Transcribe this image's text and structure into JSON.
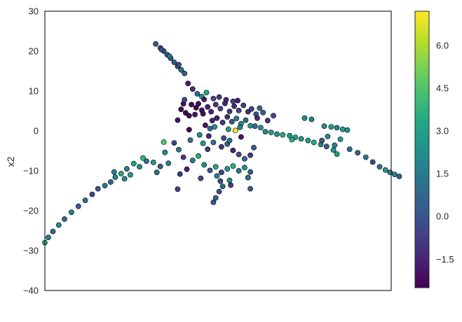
{
  "chart_data": {
    "type": "scatter",
    "title": "",
    "xlabel": "",
    "ylabel": "x2",
    "ylim": [
      -40,
      30
    ],
    "yticks": [
      30,
      20,
      10,
      0,
      -10,
      -20,
      -30,
      -40
    ],
    "xlim": [
      -15,
      15
    ],
    "xticks_shown": false,
    "grid": false,
    "legend": "none",
    "colormap": "viridis",
    "colorbar": {
      "range": [
        -2.5,
        7.2
      ],
      "ticks": [
        6.0,
        4.5,
        3.0,
        1.5,
        0.0,
        -1.5
      ],
      "tick_labels": [
        "6.0",
        "4.5",
        "3.0",
        "1.5",
        "0.0",
        "−1.5"
      ]
    },
    "marker_edge_color": "#000000",
    "points": [
      {
        "x": -5.4,
        "y": 21.8,
        "c": 0.2
      },
      {
        "x": -5.0,
        "y": 20.8,
        "c": 0.5
      },
      {
        "x": -4.7,
        "y": 20.0,
        "c": 0.0
      },
      {
        "x": -4.4,
        "y": 19.1,
        "c": 0.4
      },
      {
        "x": -4.1,
        "y": 18.2,
        "c": 0.6
      },
      {
        "x": -3.8,
        "y": 17.2,
        "c": 0.1
      },
      {
        "x": -3.5,
        "y": 16.2,
        "c": 0.5
      },
      {
        "x": -3.2,
        "y": 15.3,
        "c": 1.0
      },
      {
        "x": -2.9,
        "y": 14.4,
        "c": 0.3
      },
      {
        "x": -4.9,
        "y": 20.4,
        "c": -0.3
      },
      {
        "x": -4.2,
        "y": 18.7,
        "c": 1.2
      },
      {
        "x": -3.4,
        "y": 16.6,
        "c": -0.2
      },
      {
        "x": -2.6,
        "y": 11.9,
        "c": -1.8
      },
      {
        "x": -2.2,
        "y": 10.5,
        "c": -1.2
      },
      {
        "x": -1.8,
        "y": 9.3,
        "c": 0.8
      },
      {
        "x": -1.4,
        "y": 8.6,
        "c": 2.6
      },
      {
        "x": -1.0,
        "y": 9.6,
        "c": 3.2
      },
      {
        "x": -2.3,
        "y": 6.6,
        "c": -2.3
      },
      {
        "x": -1.9,
        "y": 5.8,
        "c": -2.4
      },
      {
        "x": -1.4,
        "y": 5.2,
        "c": -2.0
      },
      {
        "x": -3.2,
        "y": 5.4,
        "c": -2.3
      },
      {
        "x": -2.8,
        "y": 4.5,
        "c": -2.4
      },
      {
        "x": -2.5,
        "y": 3.8,
        "c": -2.2
      },
      {
        "x": -3.0,
        "y": 6.8,
        "c": -2.1
      },
      {
        "x": -2.0,
        "y": 4.1,
        "c": -1.9
      },
      {
        "x": -1.7,
        "y": 6.8,
        "c": -2.1
      },
      {
        "x": -1.3,
        "y": 4.3,
        "c": -2.2
      },
      {
        "x": -0.9,
        "y": 6.0,
        "c": -1.7
      },
      {
        "x": -0.6,
        "y": 4.8,
        "c": -1.5
      },
      {
        "x": -0.2,
        "y": 6.6,
        "c": -1.0
      },
      {
        "x": 0.2,
        "y": 5.6,
        "c": -0.6
      },
      {
        "x": 0.6,
        "y": 6.9,
        "c": -1.3
      },
      {
        "x": 1.0,
        "y": 4.9,
        "c": -0.8
      },
      {
        "x": 1.4,
        "y": 6.2,
        "c": -1.1
      },
      {
        "x": 1.8,
        "y": 5.1,
        "c": -0.4
      },
      {
        "x": 2.2,
        "y": 6.4,
        "c": -0.9
      },
      {
        "x": 2.6,
        "y": 4.8,
        "c": -1.2
      },
      {
        "x": 2.9,
        "y": 5.5,
        "c": -0.6
      },
      {
        "x": 3.3,
        "y": 4.2,
        "c": -0.1
      },
      {
        "x": -0.5,
        "y": 2.6,
        "c": -1.4
      },
      {
        "x": -0.1,
        "y": 3.2,
        "c": -1.6
      },
      {
        "x": 0.4,
        "y": 2.1,
        "c": -0.9
      },
      {
        "x": 0.8,
        "y": 3.5,
        "c": -1.2
      },
      {
        "x": 1.2,
        "y": 2.3,
        "c": 0.2
      },
      {
        "x": 1.6,
        "y": 3.1,
        "c": 1.4
      },
      {
        "x": 2.0,
        "y": 1.8,
        "c": 2.1
      },
      {
        "x": 2.4,
        "y": 2.7,
        "c": 0.7
      },
      {
        "x": 2.8,
        "y": 1.3,
        "c": 2.8
      },
      {
        "x": -1.1,
        "y": 1.4,
        "c": -2.0
      },
      {
        "x": -0.7,
        "y": 0.6,
        "c": 0.9
      },
      {
        "x": -0.3,
        "y": 1.0,
        "c": 2.4
      },
      {
        "x": 0.9,
        "y": 0.4,
        "c": 2.9
      },
      {
        "x": 1.5,
        "y": 0.1,
        "c": 7.0
      },
      {
        "x": 1.9,
        "y": 0.9,
        "c": 1.7
      },
      {
        "x": 0.1,
        "y": 8.5,
        "c": -1.0
      },
      {
        "x": 0.7,
        "y": 7.8,
        "c": -1.4
      },
      {
        "x": 1.3,
        "y": 7.4,
        "c": -0.7
      },
      {
        "x": 1.7,
        "y": 7.6,
        "c": -1.6
      },
      {
        "x": -1.2,
        "y": 7.9,
        "c": -1.8
      },
      {
        "x": -0.4,
        "y": 8.1,
        "c": -0.3
      },
      {
        "x": 3.6,
        "y": 5.7,
        "c": 0.6
      },
      {
        "x": 3.9,
        "y": 4.6,
        "c": 0.3
      },
      {
        "x": 3.4,
        "y": 3.2,
        "c": -1.3
      },
      {
        "x": 3.2,
        "y": 1.2,
        "c": 1.0
      },
      {
        "x": 3.7,
        "y": 0.8,
        "c": 2.3
      },
      {
        "x": 4.1,
        "y": -0.2,
        "c": 1.8
      },
      {
        "x": 4.6,
        "y": -0.4,
        "c": 3.0
      },
      {
        "x": 5.1,
        "y": -0.8,
        "c": 2.2
      },
      {
        "x": 5.6,
        "y": -1.0,
        "c": 3.4
      },
      {
        "x": 6.2,
        "y": -1.2,
        "c": 2.7
      },
      {
        "x": 6.7,
        "y": -1.6,
        "c": 3.1
      },
      {
        "x": 7.2,
        "y": -2.0,
        "c": 2.5
      },
      {
        "x": 7.8,
        "y": -2.4,
        "c": 2.9
      },
      {
        "x": 8.3,
        "y": -2.9,
        "c": 3.3
      },
      {
        "x": 8.9,
        "y": -3.4,
        "c": 2.0
      },
      {
        "x": 9.4,
        "y": -3.9,
        "c": 0.3
      },
      {
        "x": 10.0,
        "y": -4.8,
        "c": 2.6
      },
      {
        "x": 10.3,
        "y": -5.8,
        "c": 3.0
      },
      {
        "x": 7.5,
        "y": 3.2,
        "c": 2.4
      },
      {
        "x": 8.1,
        "y": 2.9,
        "c": 1.6
      },
      {
        "x": 9.2,
        "y": 1.2,
        "c": 2.2
      },
      {
        "x": 9.8,
        "y": 1.0,
        "c": 2.8
      },
      {
        "x": 10.3,
        "y": 0.8,
        "c": 1.9
      },
      {
        "x": 10.8,
        "y": 0.4,
        "c": 3.0
      },
      {
        "x": 11.2,
        "y": 0.2,
        "c": 2.4
      },
      {
        "x": 9.5,
        "y": -1.4,
        "c": 2.1
      },
      {
        "x": 10.6,
        "y": -2.1,
        "c": 2.7
      },
      {
        "x": 11.4,
        "y": -4.6,
        "c": 0.8
      },
      {
        "x": 12.1,
        "y": -5.5,
        "c": 0.5
      },
      {
        "x": 12.8,
        "y": -6.6,
        "c": 1.3
      },
      {
        "x": 13.4,
        "y": -7.8,
        "c": -0.4
      },
      {
        "x": 14.0,
        "y": -9.0,
        "c": 1.0
      },
      {
        "x": 14.5,
        "y": -9.8,
        "c": 2.6
      },
      {
        "x": 14.9,
        "y": -10.4,
        "c": 1.4
      },
      {
        "x": 15.3,
        "y": -10.9,
        "c": 2.0
      },
      {
        "x": 15.7,
        "y": -11.4,
        "c": 0.4
      },
      {
        "x": 10.1,
        "y": -3.6,
        "c": 1.6
      },
      {
        "x": 9.0,
        "y": -2.4,
        "c": 0.2
      },
      {
        "x": 6.4,
        "y": -2.2,
        "c": 3.6
      },
      {
        "x": -1.6,
        "y": -1.0,
        "c": 2.0
      },
      {
        "x": -2.4,
        "y": -2.3,
        "c": 0.9
      },
      {
        "x": -3.8,
        "y": -3.0,
        "c": -0.5
      },
      {
        "x": -4.7,
        "y": -2.8,
        "c": 4.6
      },
      {
        "x": -1.3,
        "y": -3.1,
        "c": 2.6
      },
      {
        "x": -0.9,
        "y": -4.6,
        "c": -0.8
      },
      {
        "x": -0.4,
        "y": -2.9,
        "c": 1.1
      },
      {
        "x": 0.3,
        "y": -4.0,
        "c": -1.1
      },
      {
        "x": 0.8,
        "y": -3.3,
        "c": 0.4
      },
      {
        "x": 1.3,
        "y": -4.9,
        "c": -1.5
      },
      {
        "x": 1.8,
        "y": -5.9,
        "c": -0.2
      },
      {
        "x": 2.3,
        "y": -7.0,
        "c": 0.9
      },
      {
        "x": 2.8,
        "y": -6.1,
        "c": -0.7
      },
      {
        "x": 3.1,
        "y": -4.2,
        "c": 0.6
      },
      {
        "x": -1.7,
        "y": -6.3,
        "c": 3.5
      },
      {
        "x": -2.2,
        "y": -7.4,
        "c": 1.5
      },
      {
        "x": -1.2,
        "y": -8.5,
        "c": 2.3
      },
      {
        "x": -0.7,
        "y": -9.9,
        "c": 0.1
      },
      {
        "x": -0.2,
        "y": -9.0,
        "c": 3.3
      },
      {
        "x": 0.3,
        "y": -10.4,
        "c": -0.6
      },
      {
        "x": 0.8,
        "y": -9.5,
        "c": 2.7
      },
      {
        "x": 1.3,
        "y": -8.8,
        "c": 3.6
      },
      {
        "x": 1.8,
        "y": -10.0,
        "c": 1.2
      },
      {
        "x": 2.3,
        "y": -9.2,
        "c": 2.5
      },
      {
        "x": 2.8,
        "y": -10.3,
        "c": 0.5
      },
      {
        "x": -2.7,
        "y": -9.6,
        "c": -1.6
      },
      {
        "x": -3.3,
        "y": -10.8,
        "c": -0.9
      },
      {
        "x": -0.1,
        "y": -11.3,
        "c": 1.7
      },
      {
        "x": 0.2,
        "y": -12.6,
        "c": -0.4
      },
      {
        "x": 0.4,
        "y": -13.9,
        "c": 0.8
      },
      {
        "x": 0.1,
        "y": -15.2,
        "c": -0.2
      },
      {
        "x": -0.2,
        "y": -16.8,
        "c": 0.4
      },
      {
        "x": -0.4,
        "y": -17.9,
        "c": 0.0
      },
      {
        "x": 1.0,
        "y": -12.4,
        "c": 2.1
      },
      {
        "x": 1.1,
        "y": -13.6,
        "c": -0.7
      },
      {
        "x": 2.6,
        "y": -11.7,
        "c": 0.9
      },
      {
        "x": 2.8,
        "y": -14.5,
        "c": 0.3
      },
      {
        "x": -3.5,
        "y": -14.6,
        "c": -0.6
      },
      {
        "x": -1.5,
        "y": -11.9,
        "c": -0.3
      },
      {
        "x": -4.3,
        "y": -8.1,
        "c": 1.8
      },
      {
        "x": -5.0,
        "y": -8.9,
        "c": 0.4
      },
      {
        "x": -5.6,
        "y": -7.9,
        "c": 2.6
      },
      {
        "x": -6.2,
        "y": -7.6,
        "c": 1.1
      },
      {
        "x": -6.8,
        "y": -9.0,
        "c": 2.3
      },
      {
        "x": -7.3,
        "y": -8.2,
        "c": 3.1
      },
      {
        "x": -7.9,
        "y": -9.5,
        "c": 1.5
      },
      {
        "x": -8.4,
        "y": -10.7,
        "c": 3.4
      },
      {
        "x": -8.9,
        "y": -11.6,
        "c": 1.9
      },
      {
        "x": -9.3,
        "y": -12.8,
        "c": 0.7
      },
      {
        "x": -9.8,
        "y": -13.7,
        "c": 1.3
      },
      {
        "x": -10.4,
        "y": -14.5,
        "c": 0.2
      },
      {
        "x": -10.9,
        "y": -15.9,
        "c": -0.4
      },
      {
        "x": -11.5,
        "y": -17.4,
        "c": 1.0
      },
      {
        "x": -12.1,
        "y": -18.9,
        "c": 0.3
      },
      {
        "x": -12.7,
        "y": -20.4,
        "c": 1.6
      },
      {
        "x": -13.3,
        "y": -22.1,
        "c": 0.8
      },
      {
        "x": -13.8,
        "y": -23.6,
        "c": 2.0
      },
      {
        "x": -14.3,
        "y": -25.2,
        "c": 0.6
      },
      {
        "x": -14.7,
        "y": -26.7,
        "c": 1.4
      },
      {
        "x": -15.0,
        "y": -28.0,
        "c": 3.2
      },
      {
        "x": -7.6,
        "y": -11.0,
        "c": 2.8
      },
      {
        "x": -8.1,
        "y": -12.0,
        "c": 2.2
      },
      {
        "x": -9.0,
        "y": -10.3,
        "c": 1.7
      },
      {
        "x": -6.5,
        "y": -6.8,
        "c": 3.9
      },
      {
        "x": -5.3,
        "y": -10.4,
        "c": 0.9
      },
      {
        "x": -4.6,
        "y": -5.4,
        "c": 2.0
      },
      {
        "x": -3.0,
        "y": -6.6,
        "c": -0.8
      },
      {
        "x": -3.4,
        "y": -4.7,
        "c": 1.3
      },
      {
        "x": 4.3,
        "y": 2.6,
        "c": -1.0
      },
      {
        "x": 4.8,
        "y": 3.8,
        "c": -0.5
      },
      {
        "x": 2.0,
        "y": -1.5,
        "c": -1.9
      },
      {
        "x": -0.8,
        "y": -1.3,
        "c": -1.3
      },
      {
        "x": 0.5,
        "y": -1.8,
        "c": -0.3
      },
      {
        "x": 1.0,
        "y": -2.4,
        "c": 1.5
      },
      {
        "x": -2.5,
        "y": 0.3,
        "c": -2.2
      },
      {
        "x": -3.5,
        "y": 2.7,
        "c": -2.0
      },
      {
        "x": -2.9,
        "y": 7.8,
        "c": -0.6
      }
    ]
  }
}
